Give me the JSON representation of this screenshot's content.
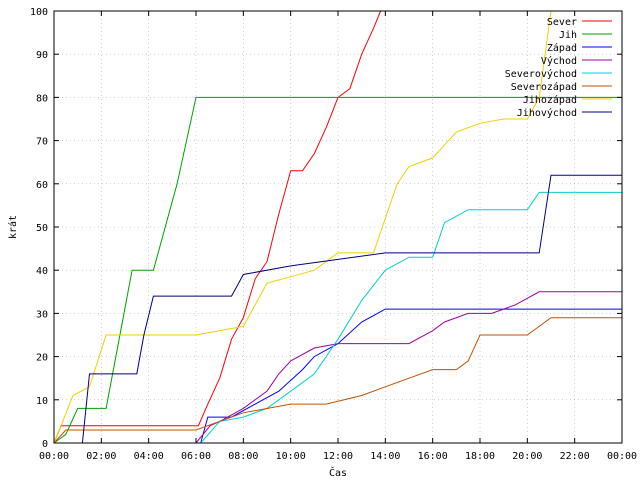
{
  "chart_data": {
    "type": "line",
    "title": "",
    "xlabel": "Čas",
    "ylabel": "krát",
    "xlim": [
      0,
      24
    ],
    "ylim": [
      0,
      100
    ],
    "grid": true,
    "legend_position": "top-right",
    "x_tick_labels": [
      "00:00",
      "02:00",
      "04:00",
      "06:00",
      "08:00",
      "10:00",
      "12:00",
      "14:00",
      "16:00",
      "18:00",
      "20:00",
      "22:00",
      "00:00"
    ],
    "y_tick_labels": [
      "0",
      "10",
      "20",
      "30",
      "40",
      "50",
      "60",
      "70",
      "80",
      "90",
      "100"
    ],
    "series": [
      {
        "name": "Sever",
        "color": "#ff0000",
        "x": [
          0.0,
          0.3,
          6.1,
          6.5,
          7.0,
          7.5,
          8.0,
          8.5,
          9.0,
          9.5,
          10.0,
          10.5,
          11.0,
          11.5,
          12.0,
          12.5,
          13.0,
          13.5,
          13.8
        ],
        "y": [
          0,
          4,
          4,
          9,
          15,
          24,
          29,
          38,
          42,
          53,
          63,
          63,
          67,
          73,
          80,
          82,
          90,
          96,
          100
        ]
      },
      {
        "name": "Jih",
        "color": "#00a000",
        "x": [
          0.0,
          0.5,
          1.0,
          2.2,
          3.3,
          4.2,
          5.2,
          6.0,
          24.0
        ],
        "y": [
          0,
          2,
          8,
          8,
          40,
          40,
          60,
          80,
          80
        ]
      },
      {
        "name": "Západ",
        "color": "#0000ff",
        "x": [
          0.0,
          6.2,
          6.5,
          7.5,
          8.5,
          9.5,
          10.5,
          11.0,
          12.0,
          13.0,
          14.0,
          24.0
        ],
        "y": [
          0,
          0,
          6,
          6,
          9,
          12,
          17,
          20,
          23,
          28,
          31,
          31
        ]
      },
      {
        "name": "Východ",
        "color": "#a000a0",
        "x": [
          0.0,
          6.0,
          6.6,
          7.0,
          8.0,
          9.0,
          9.5,
          10.0,
          11.0,
          12.0,
          13.0,
          14.0,
          15.0,
          16.0,
          16.5,
          17.5,
          18.5,
          19.5,
          20.5,
          24.0
        ],
        "y": [
          0,
          0,
          4,
          5,
          8,
          12,
          16,
          19,
          22,
          23,
          23,
          23,
          23,
          26,
          28,
          30,
          30,
          32,
          35,
          35
        ]
      },
      {
        "name": "Severovýchod",
        "color": "#00d0d0",
        "x": [
          0.0,
          6.2,
          7.0,
          8.0,
          9.0,
          10.0,
          11.0,
          12.0,
          13.0,
          14.0,
          15.0,
          16.0,
          16.5,
          17.5,
          19.0,
          20.0,
          20.5,
          21.5,
          24.0
        ],
        "y": [
          0,
          0,
          5,
          6,
          8,
          12,
          16,
          24,
          33,
          40,
          43,
          43,
          51,
          54,
          54,
          54,
          58,
          58,
          58
        ]
      },
      {
        "name": "Severozápad",
        "color": "#c05000",
        "x": [
          0.0,
          0.5,
          6.0,
          6.5,
          8.0,
          10.0,
          11.5,
          13.0,
          14.0,
          15.0,
          16.0,
          17.0,
          17.5,
          18.0,
          19.0,
          20.0,
          20.5,
          21.0,
          24.0
        ],
        "y": [
          0,
          3,
          3,
          4,
          7,
          9,
          9,
          11,
          13,
          15,
          17,
          17,
          19,
          25,
          25,
          25,
          27,
          29,
          29
        ]
      },
      {
        "name": "Jihozápad",
        "color": "#f0d000",
        "x": [
          0.0,
          0.3,
          0.8,
          1.5,
          2.2,
          4.0,
          6.0,
          8.0,
          9.0,
          11.0,
          12.0,
          13.5,
          14.0,
          14.5,
          15.0,
          16.0,
          17.0,
          18.0,
          19.0,
          20.0,
          20.5,
          21.0
        ],
        "y": [
          0,
          4,
          11,
          13,
          25,
          25,
          25,
          27,
          37,
          40,
          44,
          44,
          52,
          60,
          64,
          66,
          72,
          74,
          75,
          75,
          80,
          100
        ]
      },
      {
        "name": "Jihovýchod",
        "color": "#000080",
        "x": [
          0.0,
          1.2,
          1.5,
          3.5,
          3.8,
          4.2,
          7.5,
          7.8,
          8.0,
          10.0,
          14.0,
          16.0,
          18.0,
          20.5,
          21.0,
          24.0
        ],
        "y": [
          0,
          0,
          16,
          16,
          25,
          34,
          34,
          37,
          39,
          41,
          44,
          44,
          44,
          44,
          62,
          62
        ]
      }
    ]
  }
}
